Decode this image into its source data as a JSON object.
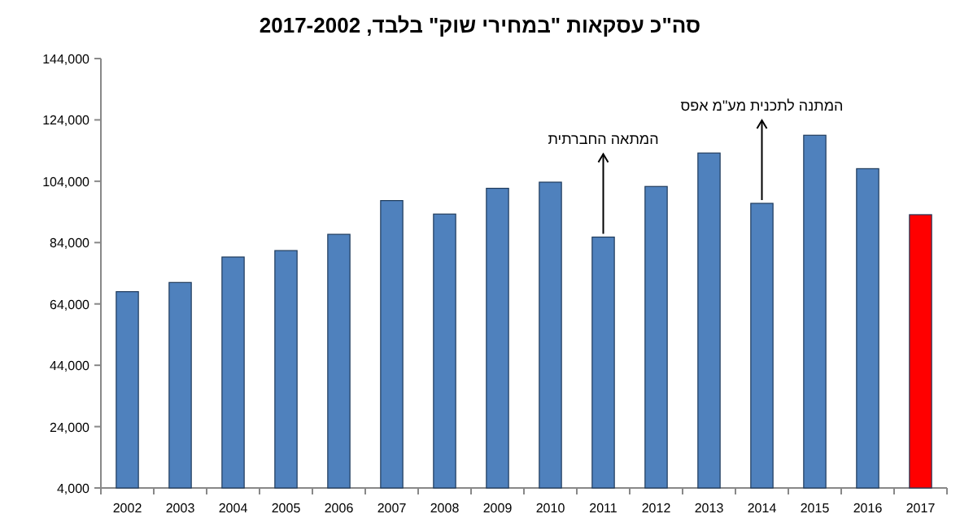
{
  "chart_data": {
    "type": "bar",
    "title": "סה\"כ עסקאות \"במחירי שוק\" בלבד, 2017-2002",
    "categories": [
      "2002",
      "2003",
      "2004",
      "2005",
      "2006",
      "2007",
      "2008",
      "2009",
      "2010",
      "2011",
      "2012",
      "2013",
      "2014",
      "2015",
      "2016",
      "2017"
    ],
    "values": [
      68000,
      71000,
      79300,
      81400,
      86700,
      97700,
      93300,
      101700,
      103700,
      85800,
      102300,
      113200,
      96800,
      119000,
      108100,
      93100
    ],
    "colors": [
      "#4f81bd",
      "#4f81bd",
      "#4f81bd",
      "#4f81bd",
      "#4f81bd",
      "#4f81bd",
      "#4f81bd",
      "#4f81bd",
      "#4f81bd",
      "#4f81bd",
      "#4f81bd",
      "#4f81bd",
      "#4f81bd",
      "#4f81bd",
      "#4f81bd",
      "#ff0000"
    ],
    "ylim": [
      4000,
      144000
    ],
    "yticks": [
      {
        "value": 4000,
        "label": "4,000"
      },
      {
        "value": 24000,
        "label": "24,000"
      },
      {
        "value": 44000,
        "label": "44,000"
      },
      {
        "value": 64000,
        "label": "64,000"
      },
      {
        "value": 84000,
        "label": "84,000"
      },
      {
        "value": 104000,
        "label": "104,000"
      },
      {
        "value": 124000,
        "label": "124,000"
      },
      {
        "value": 144000,
        "label": "144,000"
      }
    ],
    "annotations": [
      {
        "text": "המתאה החברתית",
        "x": "2011",
        "y": 85800
      },
      {
        "text": "המתנה לתכנית מע\"מ אפס",
        "x": "2014",
        "y": 96800
      }
    ]
  }
}
